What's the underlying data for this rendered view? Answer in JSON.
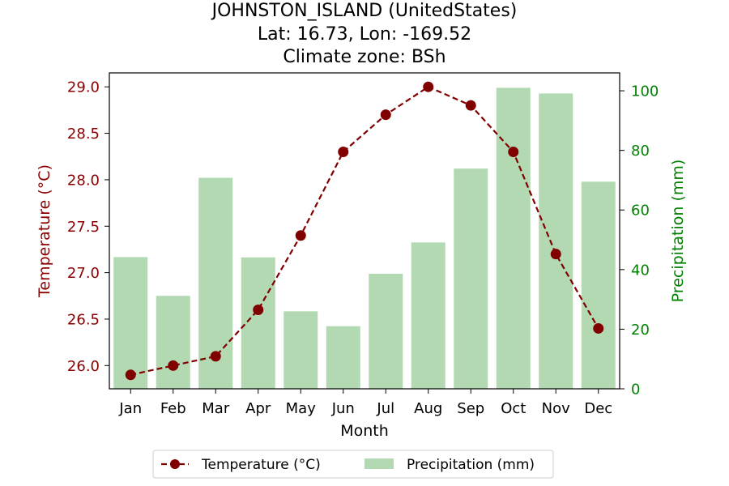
{
  "chart_data": {
    "type": "bar",
    "title_lines": [
      "JOHNSTON_ISLAND (UnitedStates)",
      "Lat: 16.73, Lon: -169.52",
      "Climate zone: BSh"
    ],
    "xlabel": "Month",
    "ylabel_left": "Temperature (°C)",
    "ylabel_right": "Precipitation (mm)",
    "categories": [
      "Jan",
      "Feb",
      "Mar",
      "Apr",
      "May",
      "Jun",
      "Jul",
      "Aug",
      "Sep",
      "Oct",
      "Nov",
      "Dec"
    ],
    "series": [
      {
        "name": "Temperature (°C)",
        "type": "line",
        "axis": "left",
        "color": "#800000",
        "values": [
          25.9,
          26.0,
          26.1,
          26.6,
          27.4,
          28.3,
          28.7,
          29.0,
          28.8,
          28.3,
          27.2,
          26.4
        ]
      },
      {
        "name": "Precipitation (mm)",
        "type": "bar",
        "axis": "right",
        "color": "#b2d9b2",
        "values": [
          44.2,
          31.2,
          70.8,
          44.1,
          26.0,
          21.0,
          38.6,
          49.1,
          73.9,
          101.0,
          99.1,
          69.5
        ]
      }
    ],
    "ylim_left": [
      25.75,
      29.15
    ],
    "yticks_left": [
      "26.0",
      "26.5",
      "27.0",
      "27.5",
      "28.0",
      "28.5",
      "29.0"
    ],
    "ylim_right": [
      0,
      106
    ],
    "yticks_right": [
      "0",
      "20",
      "40",
      "60",
      "80",
      "100"
    ],
    "left_axis_color": "#8b0000",
    "right_axis_color": "#008000",
    "grid": false,
    "legend_position": "bottom-center"
  }
}
